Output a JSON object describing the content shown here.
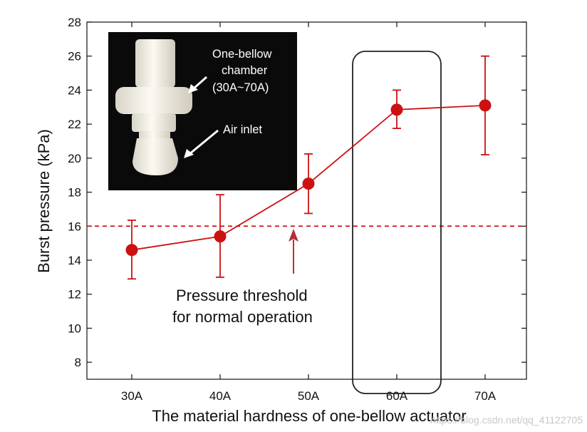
{
  "chart_data": {
    "type": "line",
    "categories": [
      "30A",
      "40A",
      "50A",
      "60A",
      "70A"
    ],
    "series": [
      {
        "values": [
          14.6,
          15.4,
          18.5,
          22.85,
          23.1
        ],
        "error_upper": [
          16.35,
          17.85,
          20.25,
          24.0,
          26.0
        ],
        "error_lower": [
          12.9,
          13.0,
          16.75,
          21.75,
          20.2
        ],
        "color": "#cc1111"
      }
    ],
    "xlabel": "The material hardness of one-bellow actuator",
    "ylabel": "Burst pressure (kPa)",
    "ylim": [
      7,
      28
    ],
    "yticks": [
      8,
      10,
      12,
      14,
      16,
      18,
      20,
      22,
      24,
      26,
      28
    ],
    "threshold": {
      "value": 16,
      "label_lines": [
        "Pressure threshold",
        "for normal operation"
      ],
      "color": "#cc1111"
    },
    "highlight_category": "60A",
    "grid": false,
    "inset": {
      "labels": [
        "One-bellow",
        "chamber",
        "(30A~70A)",
        "Air inlet"
      ]
    }
  },
  "watermark": "https://blog.csdn.net/qq_41122705"
}
